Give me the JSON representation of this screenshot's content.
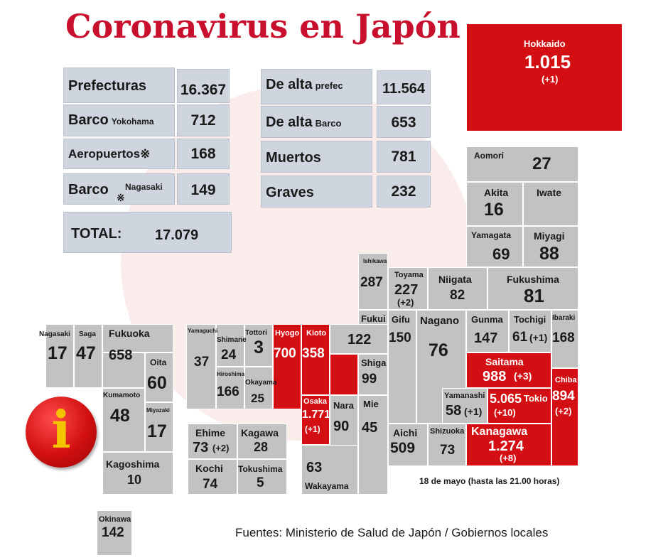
{
  "title": "Coronavirus en Japón",
  "colors": {
    "title": "#c8102e",
    "highlight": "#d40f14",
    "cell": "#c2c2c2",
    "summary_box": "#cfd5de"
  },
  "summary": {
    "prefecturas": {
      "label": "Prefecturas",
      "value": "16.367"
    },
    "barco_yokohama": {
      "label": "Barco",
      "sub": "Yokohama",
      "value": "712"
    },
    "aeropuertos": {
      "label": "Aeropuertos※",
      "value": "168"
    },
    "barco_nagasaki": {
      "label": "Barco",
      "mark": "※",
      "sub": "Nagasaki",
      "value": "149"
    },
    "total": {
      "label": "TOTAL:",
      "value": "17.079"
    },
    "de_alta_prefec": {
      "label": "De alta",
      "sub": "prefec",
      "value": "11.564"
    },
    "de_alta_barco": {
      "label": "De alta",
      "sub": "Barco",
      "value": "653"
    },
    "muertos": {
      "label": "Muertos",
      "value": "781"
    },
    "graves": {
      "label": "Graves",
      "value": "232"
    }
  },
  "prefectures": {
    "hokkaido": {
      "name": "Hokkaido",
      "value": "1.015",
      "change": "(+1)"
    },
    "aomori": {
      "name": "Aomori",
      "value": "27"
    },
    "akita": {
      "name": "Akita",
      "value": "16"
    },
    "iwate": {
      "name": "Iwate",
      "value": ""
    },
    "yamagata": {
      "name": "Yamagata",
      "value": "69"
    },
    "miyagi": {
      "name": "Miyagi",
      "value": "88"
    },
    "ishikawa": {
      "name": "Ishikawa",
      "value": "287"
    },
    "toyama": {
      "name": "Toyama",
      "value": "227",
      "change": "(+2)"
    },
    "niigata": {
      "name": "Niigata",
      "value": "82"
    },
    "fukushima": {
      "name": "Fukushima",
      "value": "81"
    },
    "fukui": {
      "name": "Fukui",
      "value": "122"
    },
    "gifu": {
      "name": "Gifu",
      "value": "150"
    },
    "nagano": {
      "name": "Nagano",
      "value": "76"
    },
    "gunma": {
      "name": "Gunma",
      "value": "147"
    },
    "tochigi": {
      "name": "Tochigi",
      "value": "61",
      "change": "(+1)"
    },
    "ibaraki": {
      "name": "Ibaraki",
      "value": "168"
    },
    "saitama": {
      "name": "Saitama",
      "value": "988",
      "change": "(+3)"
    },
    "chiba": {
      "name": "Chiba",
      "value": "894",
      "change": "(+2)"
    },
    "yamanashi": {
      "name": "Yamanashi",
      "value": "58",
      "change": "(+1)"
    },
    "tokio": {
      "name": "Tokio",
      "value": "5.065",
      "change": "(+10)"
    },
    "kanagawa": {
      "name": "Kanagawa",
      "value": "1.274",
      "change": "(+8)"
    },
    "shizuoka": {
      "name": "Shizuoka",
      "value": "73"
    },
    "aichi": {
      "name": "Aichi",
      "value": "509"
    },
    "mie": {
      "name": "Mie",
      "value": "45"
    },
    "shiga": {
      "name": "Shiga",
      "value": "99"
    },
    "nara": {
      "name": "Nara",
      "value": "90"
    },
    "wakayama": {
      "name": "Wakayama",
      "value": "63"
    },
    "osaka": {
      "name": "Osaka",
      "value": "1.771",
      "change": "(+1)"
    },
    "kioto": {
      "name": "Kioto",
      "value": "358"
    },
    "hyogo": {
      "name": "Hyogo",
      "value": "700"
    },
    "tottori": {
      "name": "Tottori",
      "value": "3"
    },
    "shimane": {
      "name": "Shimane",
      "value": "24"
    },
    "yamaguchi": {
      "name": "Yamaguchi",
      "value": "37"
    },
    "hiroshima": {
      "name": "Hiroshima",
      "value": "166"
    },
    "okayama": {
      "name": "Okayama",
      "value": "25"
    },
    "ehime": {
      "name": "Ehime",
      "value": "73",
      "change": "(+2)"
    },
    "kagawa": {
      "name": "Kagawa",
      "value": "28"
    },
    "kochi": {
      "name": "Kochi",
      "value": "74"
    },
    "tokushima": {
      "name": "Tokushima",
      "value": "5"
    },
    "nagasaki": {
      "name": "Nagasaki",
      "value": "17"
    },
    "saga": {
      "name": "Saga",
      "value": "47"
    },
    "fukuoka": {
      "name": "Fukuoka",
      "value": "658"
    },
    "oita": {
      "name": "Oita",
      "value": "60"
    },
    "kumamoto": {
      "name": "Kumamoto",
      "value": "48"
    },
    "miyazaki": {
      "name": "Miyazaki",
      "value": "17"
    },
    "kagoshima": {
      "name": "Kagoshima",
      "value": "10"
    },
    "okinawa": {
      "name": "Okinawa",
      "value": "142"
    }
  },
  "date_note": "18 de mayo  (hasta las 21.00 horas)",
  "source": "Fuentes: Ministerio de Salud de Japón / Gobiernos locales",
  "icon": {
    "name": "info-icon",
    "glyph": "i"
  }
}
